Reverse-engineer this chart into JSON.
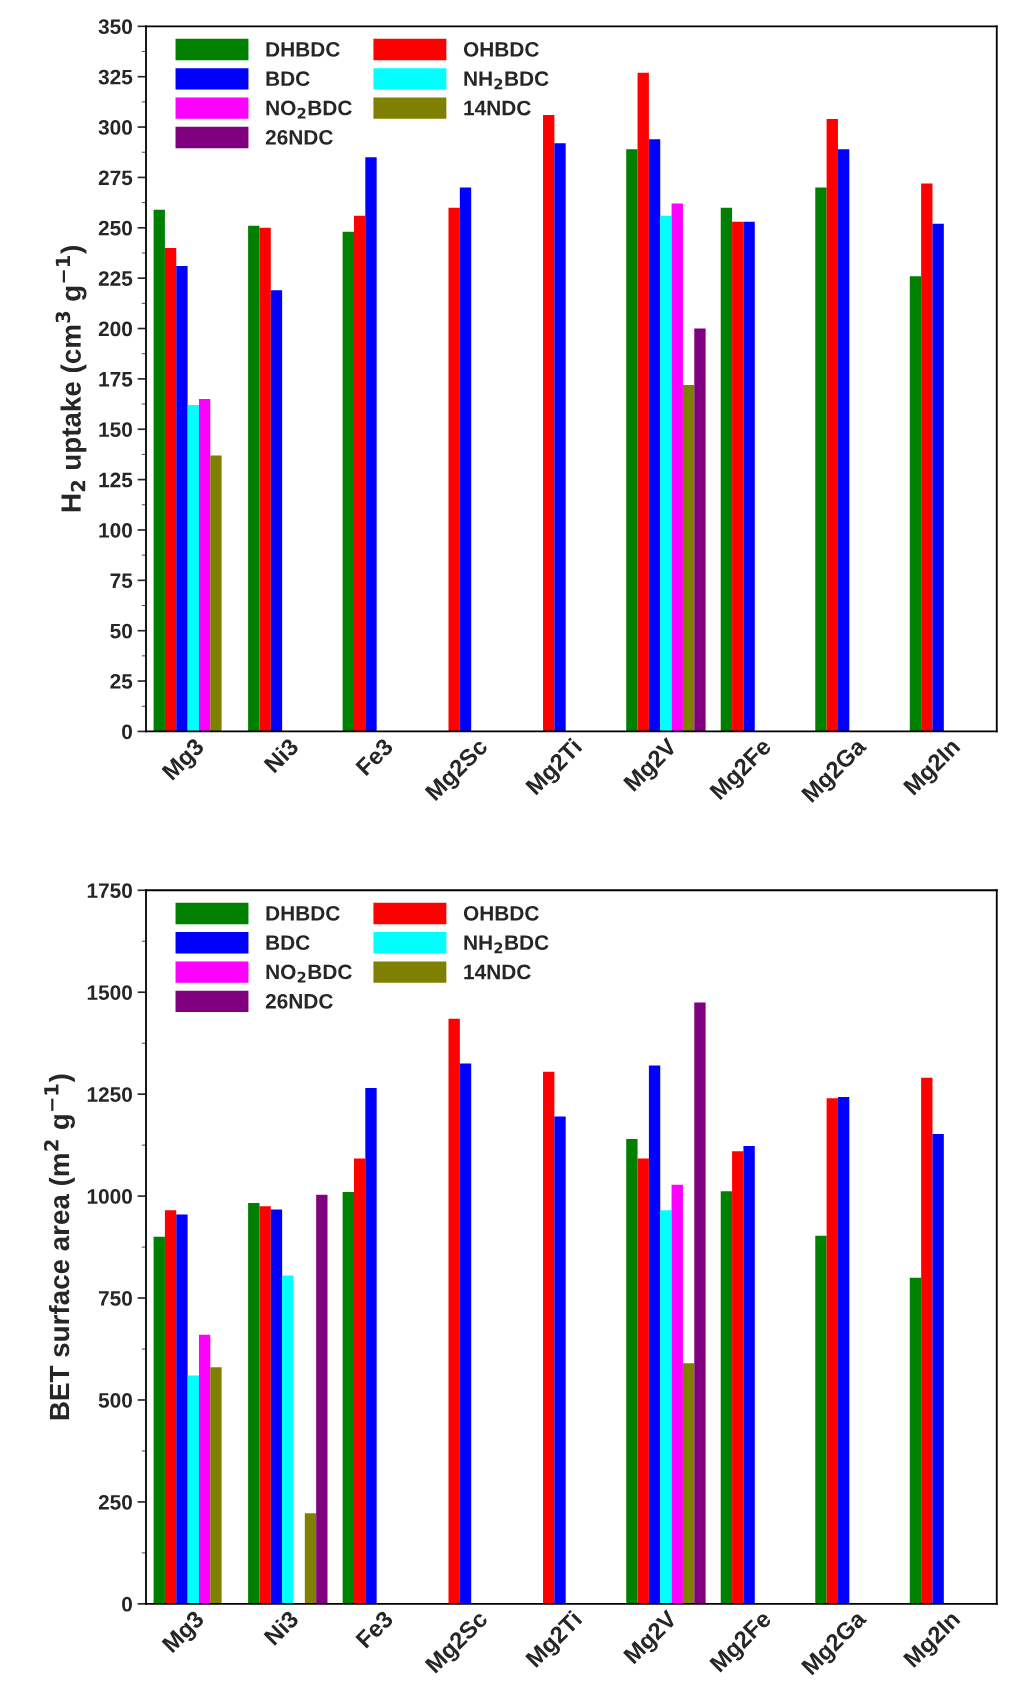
{
  "chart_data": [
    {
      "type": "bar",
      "ylabel": "H$_{2}$ uptake (cm$^{3}$ g$^{−1}$)",
      "categories": [
        "Mg3",
        "Ni3",
        "Fe3",
        "Mg2Sc",
        "Mg2Ti",
        "Mg2V",
        "Mg2Fe",
        "Mg2Ga",
        "Mg2In"
      ],
      "ylim": [
        0,
        350
      ],
      "yticks": [
        0,
        25,
        50,
        75,
        100,
        125,
        150,
        175,
        200,
        225,
        250,
        275,
        300,
        325,
        350
      ],
      "grid": false,
      "legend": "top left",
      "series": [
        {
          "name": "DHBDC",
          "color": "#008000",
          "values": [
            259,
            251,
            248,
            null,
            null,
            289,
            260,
            270,
            226
          ]
        },
        {
          "name": "OHBDC",
          "color": "#ff0000",
          "values": [
            240,
            250,
            256,
            260,
            306,
            327,
            253,
            304,
            272
          ]
        },
        {
          "name": "BDC",
          "color": "#0000ff",
          "values": [
            231,
            219,
            285,
            270,
            292,
            294,
            253,
            289,
            252
          ]
        },
        {
          "name": "NH$_{2}$BDC",
          "color": "#00ffff",
          "values": [
            162,
            null,
            null,
            null,
            null,
            256,
            null,
            null,
            null
          ]
        },
        {
          "name": "NO$_{2}$BDC",
          "color": "#ff00ff",
          "values": [
            165,
            null,
            null,
            null,
            null,
            262,
            null,
            null,
            null
          ]
        },
        {
          "name": "14NDC",
          "color": "#808000",
          "values": [
            137,
            null,
            null,
            null,
            null,
            172,
            null,
            null,
            null
          ]
        },
        {
          "name": "26NDC",
          "color": "#800080",
          "values": [
            null,
            null,
            null,
            null,
            null,
            200,
            null,
            null,
            null
          ]
        }
      ]
    },
    {
      "type": "bar",
      "ylabel": "BET surface area (m$^{2}$ g$^{−1}$)",
      "categories": [
        "Mg3",
        "Ni3",
        "Fe3",
        "Mg2Sc",
        "Mg2Ti",
        "Mg2V",
        "Mg2Fe",
        "Mg2Ga",
        "Mg2In"
      ],
      "ylim": [
        0,
        1750
      ],
      "yticks": [
        0,
        250,
        500,
        750,
        1000,
        1250,
        1500,
        1750
      ],
      "grid": false,
      "legend": "top left",
      "series": [
        {
          "name": "DHBDC",
          "color": "#008000",
          "values": [
            900,
            983,
            1010,
            null,
            null,
            1140,
            1012,
            903,
            800
          ]
        },
        {
          "name": "OHBDC",
          "color": "#ff0000",
          "values": [
            965,
            975,
            1092,
            1435,
            1305,
            1092,
            1110,
            1240,
            1290
          ]
        },
        {
          "name": "BDC",
          "color": "#0000ff",
          "values": [
            955,
            967,
            1265,
            1325,
            1195,
            1320,
            1123,
            1243,
            1152
          ]
        },
        {
          "name": "NH$_{2}$BDC",
          "color": "#00ffff",
          "values": [
            560,
            805,
            null,
            null,
            null,
            965,
            null,
            null,
            null
          ]
        },
        {
          "name": "NO$_{2}$BDC",
          "color": "#ff00ff",
          "values": [
            660,
            null,
            null,
            null,
            null,
            1028,
            null,
            null,
            null
          ]
        },
        {
          "name": "14NDC",
          "color": "#808000",
          "values": [
            580,
            222,
            null,
            null,
            null,
            590,
            null,
            null,
            null
          ]
        },
        {
          "name": "26NDC",
          "color": "#800080",
          "values": [
            null,
            1003,
            null,
            null,
            null,
            1475,
            null,
            null,
            null
          ]
        }
      ]
    }
  ]
}
